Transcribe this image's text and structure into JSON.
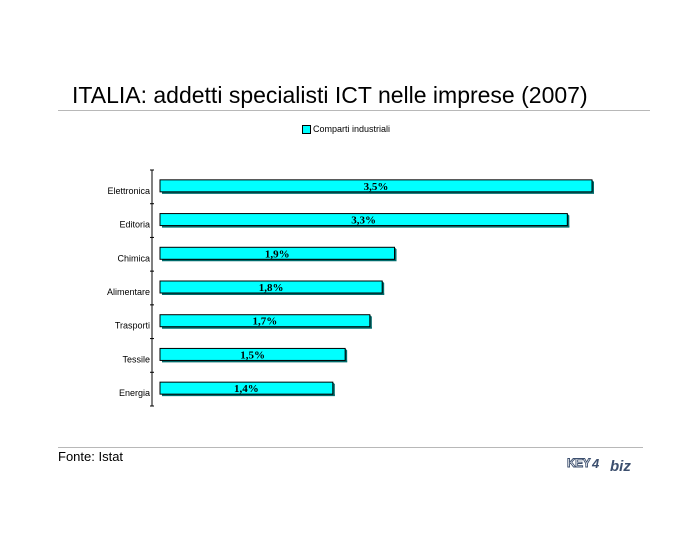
{
  "title": "ITALIA: addetti specialisti ICT nelle imprese (2007)",
  "source": "Fonte: Istat",
  "logo": {
    "text": "KEY4biz"
  },
  "colors": {
    "bar": "#00ffff",
    "bar_edge": "#000000",
    "bar_side": "#006b6b"
  },
  "chart_data": {
    "type": "bar",
    "orientation": "horizontal",
    "title": "ITALIA: addetti specialisti ICT nelle imprese (2007)",
    "categories": [
      "Elettronica",
      "Editoria",
      "Chimica",
      "Alimentare",
      "Trasporti",
      "Tessile",
      "Energia"
    ],
    "series": [
      {
        "name": "Comparti industriali",
        "values": [
          3.5,
          3.3,
          1.9,
          1.8,
          1.7,
          1.5,
          1.4
        ],
        "labels": [
          "3,5%",
          "3,3%",
          "1,9%",
          "1,8%",
          "1,7%",
          "1,5%",
          "1,4%"
        ]
      }
    ],
    "xlim": [
      0,
      3.5
    ],
    "grid": false,
    "legend": "top"
  }
}
